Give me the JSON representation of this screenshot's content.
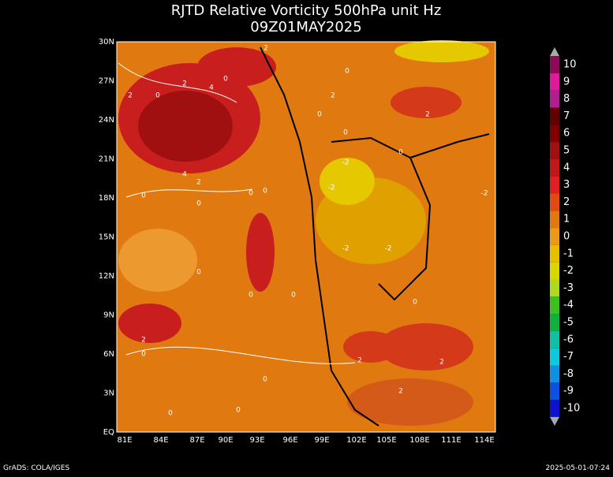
{
  "title": {
    "line1": "RJTD Relative Vorticity 500hPa unit Hz",
    "line2": "09Z01MAY2025"
  },
  "lat_labels": [
    "30N",
    "27N",
    "24N",
    "21N",
    "18N",
    "15N",
    "12N",
    "9N",
    "6N",
    "3N",
    "EQ"
  ],
  "lon_labels": [
    "81E",
    "84E",
    "87E",
    "90E",
    "93E",
    "96E",
    "99E",
    "102E",
    "105E",
    "108E",
    "111E",
    "114E"
  ],
  "colorbar_labels": [
    "10",
    "9",
    "8",
    "7",
    "6",
    "5",
    "4",
    "3",
    "2",
    "1",
    "0",
    "-1",
    "-2",
    "-3",
    "-4",
    "-5",
    "-6",
    "-7",
    "-8",
    "-9",
    "-10"
  ],
  "contour_labels": [
    "2",
    "0",
    "2",
    "0",
    "4",
    "2",
    "0",
    "2",
    "0",
    "2",
    "0",
    "4",
    "2",
    "0",
    "0",
    "0",
    "-2",
    "0",
    "-2",
    "0",
    "-2",
    "-2",
    "-2",
    "0",
    "0",
    "0",
    "2",
    "0",
    "2",
    "2",
    "0",
    "0",
    "2",
    "0",
    "0"
  ],
  "footer": {
    "left": "GrADS: COLA/IGES",
    "right": "2025-05-01-07:24"
  }
}
